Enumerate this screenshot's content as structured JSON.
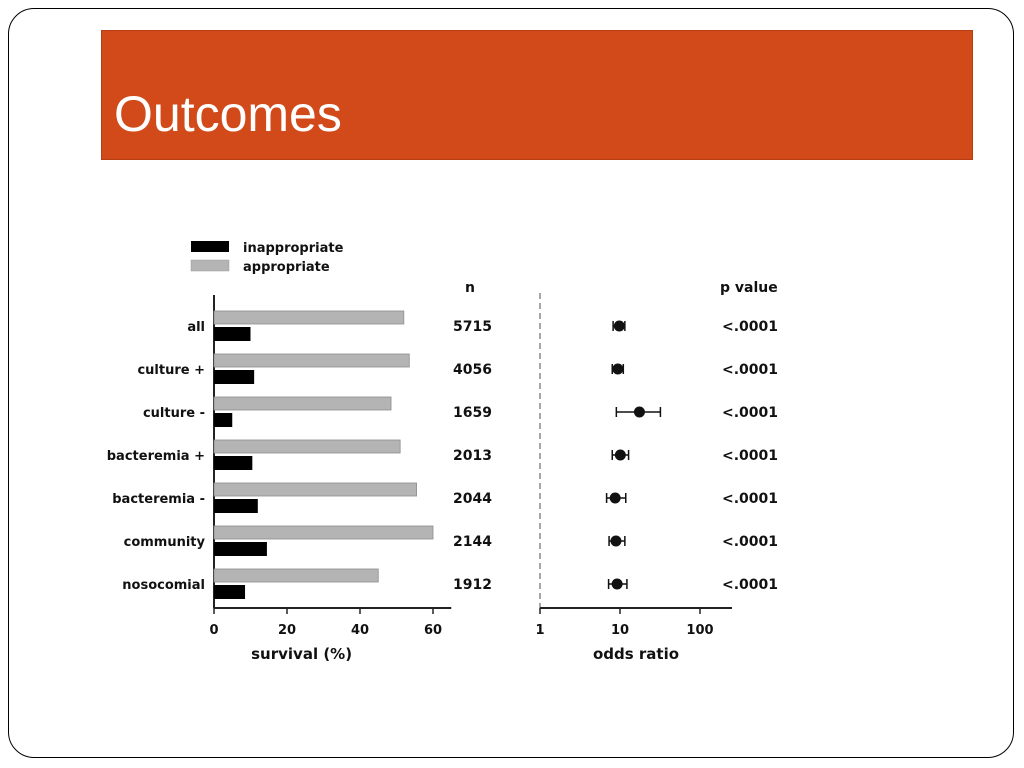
{
  "slide": {
    "title": "Outcomes"
  },
  "colors": {
    "title_bar": "#d24a1a",
    "inappropriate": "#000000",
    "appropriate": "#b4b4b4"
  },
  "chart_data": [
    {
      "type": "bar",
      "orientation": "horizontal",
      "categories": [
        "all",
        "culture +",
        "culture -",
        "bacteremia +",
        "bacteremia -",
        "community",
        "nosocomial"
      ],
      "series": [
        {
          "name": "inappropriate",
          "values": [
            10,
            11,
            5,
            10.5,
            12,
            14.5,
            8.5
          ]
        },
        {
          "name": "appropriate",
          "values": [
            52,
            53.5,
            48.5,
            51,
            55.5,
            60,
            45
          ]
        }
      ],
      "xlabel": "survival (%)",
      "xlim": [
        0,
        65
      ],
      "xticks": [
        0,
        20,
        40,
        60
      ],
      "legend": "top-left",
      "n_label": "n",
      "n_values": [
        "5715",
        "4056",
        "1659",
        "2013",
        "2044",
        "2144",
        "1912"
      ]
    },
    {
      "type": "scatter",
      "subtype": "forest",
      "categories": [
        "all",
        "culture +",
        "culture -",
        "bacteremia +",
        "bacteremia -",
        "community",
        "nosocomial"
      ],
      "x_scale": "log",
      "xlim": [
        1,
        200
      ],
      "xticks": [
        1,
        10,
        100
      ],
      "xlabel": "odds ratio",
      "reference_line": 1,
      "points": [
        {
          "or": 9.8,
          "lo": 8.2,
          "hi": 11.5
        },
        {
          "or": 9.4,
          "lo": 8.0,
          "hi": 11.0
        },
        {
          "or": 17.5,
          "lo": 9.0,
          "hi": 32.0
        },
        {
          "or": 10.1,
          "lo": 8.0,
          "hi": 12.8
        },
        {
          "or": 8.7,
          "lo": 6.8,
          "hi": 11.8
        },
        {
          "or": 8.9,
          "lo": 7.3,
          "hi": 11.5
        },
        {
          "or": 9.2,
          "lo": 7.2,
          "hi": 12.2
        }
      ],
      "p_label": "p value",
      "p_values": [
        "<.0001",
        "<.0001",
        "<.0001",
        "<.0001",
        "<.0001",
        "<.0001",
        "<.0001"
      ]
    }
  ]
}
